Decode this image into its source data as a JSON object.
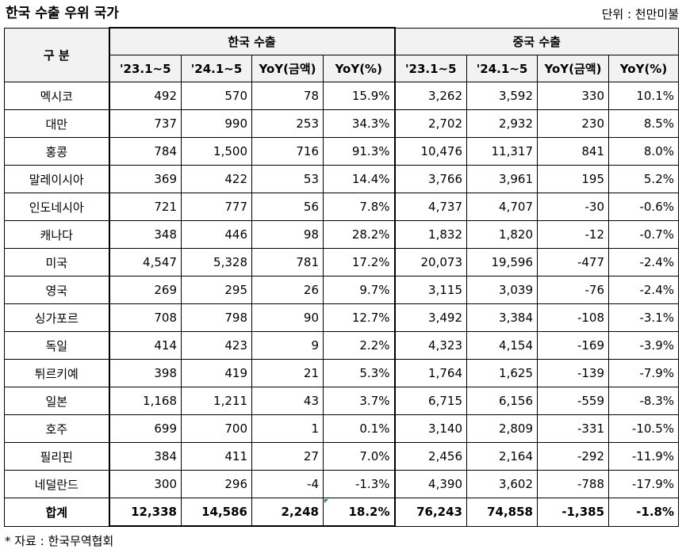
{
  "title": "한국 수출 우위 국가",
  "unit": "단위 : 천만미불",
  "header": {
    "gubun": "구 분",
    "korea_group": "한국 수출",
    "china_group": "중국 수출",
    "cols": [
      "'23.1~5",
      "'24.1~5",
      "YoY(금액)",
      "YoY(%)"
    ]
  },
  "rows": [
    {
      "country": "멕시코",
      "k": [
        "492",
        "570",
        "78",
        "15.9%"
      ],
      "c": [
        "3,262",
        "3,592",
        "330",
        "10.1%"
      ]
    },
    {
      "country": "대만",
      "k": [
        "737",
        "990",
        "253",
        "34.3%"
      ],
      "c": [
        "2,702",
        "2,932",
        "230",
        "8.5%"
      ]
    },
    {
      "country": "홍콩",
      "k": [
        "784",
        "1,500",
        "716",
        "91.3%"
      ],
      "c": [
        "10,476",
        "11,317",
        "841",
        "8.0%"
      ]
    },
    {
      "country": "말레이시아",
      "k": [
        "369",
        "422",
        "53",
        "14.4%"
      ],
      "c": [
        "3,766",
        "3,961",
        "195",
        "5.2%"
      ]
    },
    {
      "country": "인도네시아",
      "k": [
        "721",
        "777",
        "56",
        "7.8%"
      ],
      "c": [
        "4,737",
        "4,707",
        "-30",
        "-0.6%"
      ]
    },
    {
      "country": "캐나다",
      "k": [
        "348",
        "446",
        "98",
        "28.2%"
      ],
      "c": [
        "1,832",
        "1,820",
        "-12",
        "-0.7%"
      ]
    },
    {
      "country": "미국",
      "k": [
        "4,547",
        "5,328",
        "781",
        "17.2%"
      ],
      "c": [
        "20,073",
        "19,596",
        "-477",
        "-2.4%"
      ]
    },
    {
      "country": "영국",
      "k": [
        "269",
        "295",
        "26",
        "9.7%"
      ],
      "c": [
        "3,115",
        "3,039",
        "-76",
        "-2.4%"
      ]
    },
    {
      "country": "싱가포르",
      "k": [
        "708",
        "798",
        "90",
        "12.7%"
      ],
      "c": [
        "3,492",
        "3,384",
        "-108",
        "-3.1%"
      ]
    },
    {
      "country": "독일",
      "k": [
        "414",
        "423",
        "9",
        "2.2%"
      ],
      "c": [
        "4,323",
        "4,154",
        "-169",
        "-3.9%"
      ]
    },
    {
      "country": "튀르키예",
      "k": [
        "398",
        "419",
        "21",
        "5.3%"
      ],
      "c": [
        "1,764",
        "1,625",
        "-139",
        "-7.9%"
      ]
    },
    {
      "country": "일본",
      "k": [
        "1,168",
        "1,211",
        "43",
        "3.7%"
      ],
      "c": [
        "6,715",
        "6,156",
        "-559",
        "-8.3%"
      ]
    },
    {
      "country": "호주",
      "k": [
        "699",
        "700",
        "1",
        "0.1%"
      ],
      "c": [
        "3,140",
        "2,809",
        "-331",
        "-10.5%"
      ]
    },
    {
      "country": "필리핀",
      "k": [
        "384",
        "411",
        "27",
        "7.0%"
      ],
      "c": [
        "2,456",
        "2,164",
        "-292",
        "-11.9%"
      ]
    },
    {
      "country": "네덜란드",
      "k": [
        "300",
        "296",
        "-4",
        "-1.3%"
      ],
      "c": [
        "4,390",
        "3,602",
        "-788",
        "-17.9%"
      ]
    }
  ],
  "total": {
    "country": "합계",
    "k": [
      "12,338",
      "14,586",
      "2,248",
      "18.2%"
    ],
    "c": [
      "76,243",
      "74,858",
      "-1,385",
      "-1.8%"
    ]
  },
  "source": "* 자료 : 한국무역협회"
}
